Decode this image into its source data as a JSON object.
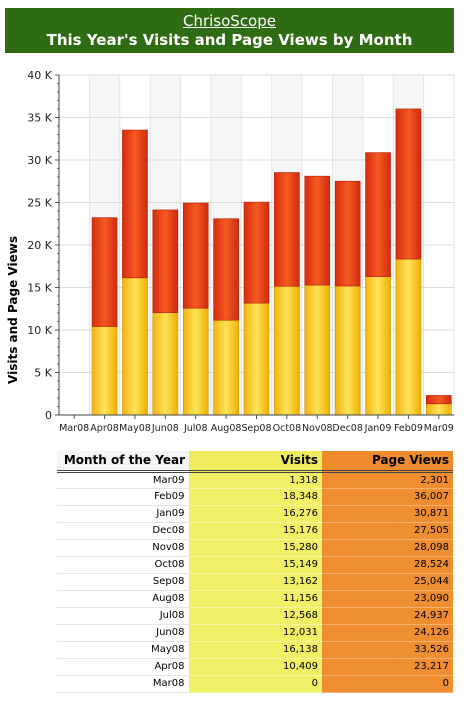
{
  "header": {
    "site_name": "ChrisoScope",
    "title": "This Year's Visits and Page Views by Month"
  },
  "colors": {
    "header_bg": "#2e6b12",
    "visits": "#f5c218",
    "page_views": "#e8401a",
    "table_visits": "#f0f066",
    "table_page_views": "#ee8e30"
  },
  "chart_data": {
    "type": "bar",
    "stacked": true,
    "title": "This Year's Visits and Page Views by Month",
    "ylabel": "Visits and Page Views",
    "xlabel": "",
    "ylim": [
      0,
      40000
    ],
    "y_ticks": [
      "0",
      "5 K",
      "10 K",
      "15 K",
      "20 K",
      "25 K",
      "30 K",
      "35 K",
      "40 K"
    ],
    "grid": true,
    "categories": [
      "Mar08",
      "Apr08",
      "May08",
      "Jun08",
      "Jul08",
      "Aug08",
      "Sep08",
      "Oct08",
      "Nov08",
      "Dec08",
      "Jan09",
      "Feb09",
      "Mar09"
    ],
    "series": [
      {
        "name": "",
        "values": [
          0,
          10409,
          16138,
          12031,
          12568,
          11156,
          13162,
          15149,
          15280,
          15176,
          16276,
          18348,
          1318
        ]
      },
      {
        "name": "",
        "values": [
          0,
          12808,
          17388,
          12095,
          12369,
          11934,
          11882,
          13375,
          12818,
          12329,
          14595,
          17659,
          983
        ]
      }
    ]
  },
  "table": {
    "headers": {
      "month": "Month of the Year",
      "visits": "Visits",
      "page_views": "Page Views"
    },
    "rows": [
      {
        "month": "Mar09",
        "visits": "1,318",
        "page_views": "2,301"
      },
      {
        "month": "Feb09",
        "visits": "18,348",
        "page_views": "36,007"
      },
      {
        "month": "Jan09",
        "visits": "16,276",
        "page_views": "30,871"
      },
      {
        "month": "Dec08",
        "visits": "15,176",
        "page_views": "27,505"
      },
      {
        "month": "Nov08",
        "visits": "15,280",
        "page_views": "28,098"
      },
      {
        "month": "Oct08",
        "visits": "15,149",
        "page_views": "28,524"
      },
      {
        "month": "Sep08",
        "visits": "13,162",
        "page_views": "25,044"
      },
      {
        "month": "Aug08",
        "visits": "11,156",
        "page_views": "23,090"
      },
      {
        "month": "Jul08",
        "visits": "12,568",
        "page_views": "24,937"
      },
      {
        "month": "Jun08",
        "visits": "12,031",
        "page_views": "24,126"
      },
      {
        "month": "May08",
        "visits": "16,138",
        "page_views": "33,526"
      },
      {
        "month": "Apr08",
        "visits": "10,409",
        "page_views": "23,217"
      },
      {
        "month": "Mar08",
        "visits": "0",
        "page_views": "0"
      }
    ]
  }
}
